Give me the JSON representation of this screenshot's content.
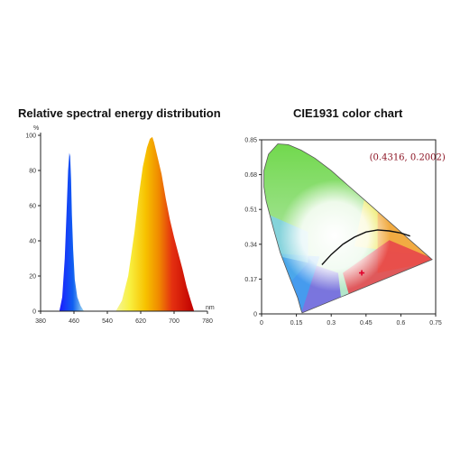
{
  "chart_data": [
    {
      "type": "area",
      "title": "Relative spectral energy distribution",
      "xlabel": "",
      "ylabel": "",
      "x_unit": "nm",
      "y_unit": "%",
      "xlim": [
        380,
        780
      ],
      "ylim": [
        0,
        100
      ],
      "x_ticks": [
        "380",
        "460",
        "540",
        "620",
        "700",
        "780"
      ],
      "y_ticks": [
        "0",
        "20",
        "40",
        "60",
        "80",
        "100"
      ],
      "series": [
        {
          "x": [
            425,
            432,
            438,
            442,
            446,
            449,
            451,
            453,
            455,
            458,
            462,
            468,
            476,
            484
          ],
          "y": [
            0,
            8,
            30,
            55,
            80,
            90,
            88,
            75,
            55,
            35,
            18,
            8,
            3,
            0
          ]
        },
        {
          "x": [
            560,
            575,
            590,
            605,
            615,
            625,
            635,
            642,
            648,
            652,
            660,
            670,
            680,
            690,
            700,
            710,
            720,
            730,
            740,
            748
          ],
          "y": [
            0,
            6,
            20,
            45,
            65,
            82,
            93,
            98,
            99,
            96,
            88,
            78,
            64,
            52,
            42,
            33,
            24,
            14,
            6,
            0
          ]
        }
      ],
      "grid": false
    },
    {
      "type": "scatter",
      "title": "CIE1931 color chart",
      "xlabel": "",
      "ylabel": "",
      "xlim": [
        0,
        0.75
      ],
      "ylim": [
        0,
        0.85
      ],
      "x_ticks": [
        "0",
        "0.15",
        "0.3",
        "0.45",
        "0.6",
        "0.75"
      ],
      "y_ticks": [
        "0",
        "0.17",
        "0.34",
        "0.51",
        "0.68",
        "0.85"
      ],
      "annotation": "(0.4316, 0.2002)",
      "point": {
        "x": 0.4316,
        "y": 0.2002
      },
      "planckian_locus": {
        "x": [
          0.26,
          0.3,
          0.35,
          0.4,
          0.45,
          0.5,
          0.55,
          0.6,
          0.64
        ],
        "y": [
          0.24,
          0.29,
          0.34,
          0.375,
          0.4,
          0.41,
          0.405,
          0.395,
          0.38
        ]
      },
      "grid": false
    }
  ]
}
